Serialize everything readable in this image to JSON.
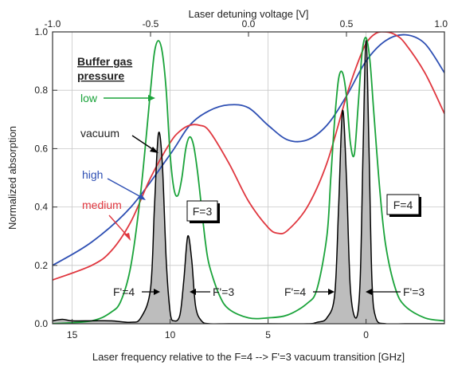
{
  "chart_data": {
    "type": "line",
    "title": "",
    "xlabel": "Laser frequency relative to the F=4 --> F'=3 vacuum transition [GHz]",
    "x2label": "Laser detuning voltage [V]",
    "ylabel": "Normalized absorption",
    "xlim": [
      16,
      -4
    ],
    "x2lim": [
      -1.0,
      1.0
    ],
    "ylim": [
      0.0,
      1.0
    ],
    "x_ticks": [
      "15",
      "10",
      "5",
      "0"
    ],
    "x2_ticks": [
      "-1.0",
      "-0.5",
      "0.0",
      "0.5",
      "1.0"
    ],
    "y_ticks": [
      "0.0",
      "0.2",
      "0.4",
      "0.6",
      "0.8",
      "1.0"
    ],
    "grid": true,
    "legend": {
      "title": [
        "Buffer gas",
        "pressure"
      ],
      "placement": "top-left"
    },
    "colors": {
      "low": "#1aa33a",
      "vacuum": "#000000",
      "high": "#2e4fb3",
      "medium": "#e0373f",
      "fill": "#bdbdbd"
    },
    "series": [
      {
        "name": "low",
        "x": [
          16,
          14,
          13,
          12.5,
          12,
          11.5,
          11,
          10.8,
          10.6,
          10.4,
          10.2,
          10,
          9.8,
          9.6,
          9.4,
          9.2,
          9.0,
          8.8,
          8.6,
          8.4,
          8.2,
          8,
          7.5,
          7,
          6,
          5,
          4,
          3,
          2.5,
          2,
          1.8,
          1.6,
          1.4,
          1.2,
          1.0,
          0.8,
          0.6,
          0.4,
          0.2,
          0,
          -0.2,
          -0.4,
          -0.7,
          -1,
          -1.5,
          -2,
          -3,
          -4
        ],
        "y": [
          0.0,
          0.01,
          0.04,
          0.08,
          0.2,
          0.45,
          0.8,
          0.93,
          0.97,
          0.93,
          0.8,
          0.58,
          0.46,
          0.44,
          0.5,
          0.6,
          0.64,
          0.61,
          0.52,
          0.4,
          0.28,
          0.2,
          0.1,
          0.05,
          0.02,
          0.02,
          0.03,
          0.07,
          0.12,
          0.3,
          0.5,
          0.7,
          0.84,
          0.86,
          0.78,
          0.62,
          0.58,
          0.75,
          0.93,
          0.98,
          0.9,
          0.72,
          0.46,
          0.27,
          0.12,
          0.06,
          0.02,
          0.01
        ]
      },
      {
        "name": "vacuum",
        "x": [
          16,
          15.5,
          15,
          14,
          13,
          12,
          11.5,
          11.0,
          10.8,
          10.6,
          10.4,
          10.2,
          10.0,
          9.8,
          9.5,
          9.3,
          9.1,
          8.9,
          8.7,
          8.4,
          8.0,
          7,
          5,
          3,
          2.5,
          2,
          1.6,
          1.4,
          1.2,
          1.0,
          0.8,
          0.5,
          0.3,
          0.15,
          0,
          -0.15,
          -0.3,
          -0.5,
          -1,
          -2,
          -4
        ],
        "y": [
          0.01,
          0.015,
          0.01,
          0.01,
          0.01,
          0.005,
          0.02,
          0.12,
          0.4,
          0.65,
          0.55,
          0.22,
          0.04,
          0.01,
          0.03,
          0.15,
          0.3,
          0.22,
          0.06,
          0.01,
          0.0,
          0.0,
          0.0,
          0.0,
          0.005,
          0.02,
          0.1,
          0.4,
          0.73,
          0.5,
          0.12,
          0.02,
          0.15,
          0.6,
          0.97,
          0.6,
          0.15,
          0.02,
          0.0,
          0.0,
          0.0
        ]
      },
      {
        "name": "high",
        "x": [
          16,
          14,
          12,
          10,
          9,
          8,
          7,
          6,
          5,
          4,
          3,
          2,
          1,
          0,
          -1,
          -2,
          -3,
          -4
        ],
        "y": [
          0.2,
          0.28,
          0.4,
          0.58,
          0.68,
          0.73,
          0.75,
          0.74,
          0.68,
          0.63,
          0.63,
          0.68,
          0.78,
          0.9,
          0.97,
          0.99,
          0.96,
          0.86
        ]
      },
      {
        "name": "medium",
        "x": [
          16,
          14,
          13,
          12,
          11,
          10,
          9.5,
          9,
          8.5,
          8,
          7,
          6,
          5,
          4.5,
          4,
          3,
          2,
          1,
          0.5,
          0,
          -0.5,
          -1,
          -1.5,
          -2,
          -3,
          -4
        ],
        "y": [
          0.15,
          0.2,
          0.25,
          0.35,
          0.5,
          0.62,
          0.66,
          0.68,
          0.68,
          0.66,
          0.55,
          0.42,
          0.33,
          0.31,
          0.32,
          0.4,
          0.55,
          0.78,
          0.88,
          0.96,
          0.995,
          1.0,
          0.99,
          0.96,
          0.86,
          0.72
        ]
      }
    ],
    "annotations": {
      "series_labels": [
        "low",
        "vacuum",
        "high",
        "medium"
      ],
      "box_left": "F=3",
      "box_right": "F=4",
      "peak_labels": [
        "F'=4",
        "F'=3",
        "F'=4",
        "F'=3"
      ]
    }
  }
}
